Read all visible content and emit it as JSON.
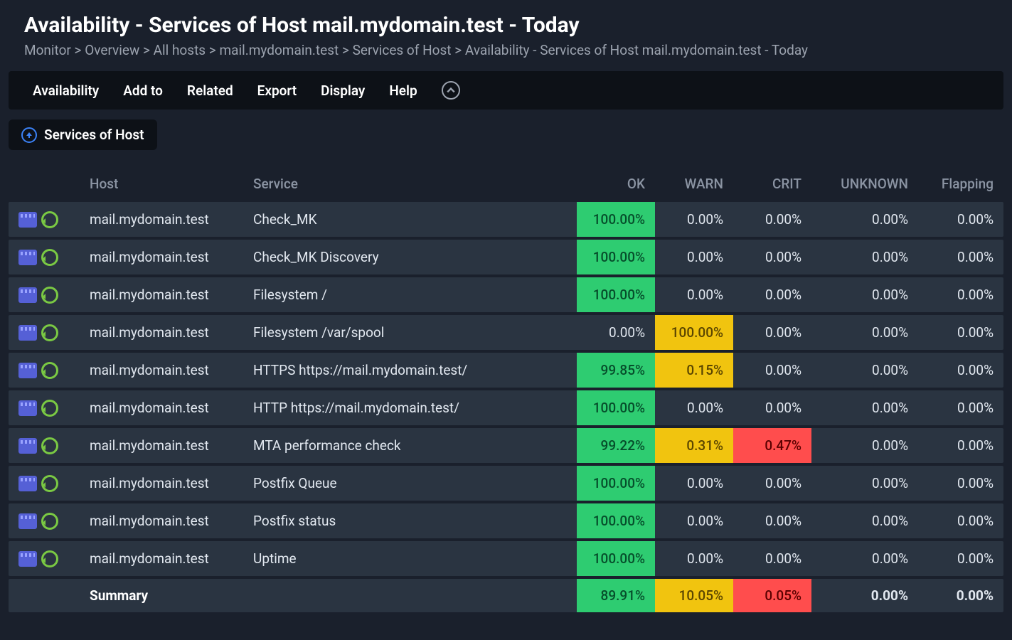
{
  "title": "Availability - Services of Host mail.mydomain.test - Today",
  "breadcrumb": [
    "Monitor",
    "Overview",
    "All hosts",
    "mail.mydomain.test",
    "Services of Host",
    "Availability - Services of Host mail.mydomain.test - Today"
  ],
  "menubar": [
    "Availability",
    "Add to",
    "Related",
    "Export",
    "Display",
    "Help"
  ],
  "chip_label": "Services of Host",
  "colors": {
    "background": "#1a202c",
    "row_bg": "#2a3441",
    "menubar_bg": "#0d1117",
    "text": "#e2e8f0",
    "muted": "#8b94a3",
    "ok_bg": "#2ecc71",
    "warn_bg": "#f1c40f",
    "crit_bg": "#ff4d4d",
    "accent_blue": "#3b82f6",
    "icon_timeline": "#5560d6",
    "icon_history": "#7ac943"
  },
  "table": {
    "columns": [
      "",
      "Host",
      "Service",
      "OK",
      "WARN",
      "CRIT",
      "UNKNOWN",
      "Flapping"
    ],
    "rows": [
      {
        "host": "mail.mydomain.test",
        "service": "Check_MK",
        "ok": "100.00%",
        "ok_hl": true,
        "warn": "0.00%",
        "warn_hl": false,
        "crit": "0.00%",
        "crit_hl": false,
        "unknown": "0.00%",
        "flapping": "0.00%"
      },
      {
        "host": "mail.mydomain.test",
        "service": "Check_MK Discovery",
        "ok": "100.00%",
        "ok_hl": true,
        "warn": "0.00%",
        "warn_hl": false,
        "crit": "0.00%",
        "crit_hl": false,
        "unknown": "0.00%",
        "flapping": "0.00%"
      },
      {
        "host": "mail.mydomain.test",
        "service": "Filesystem /",
        "ok": "100.00%",
        "ok_hl": true,
        "warn": "0.00%",
        "warn_hl": false,
        "crit": "0.00%",
        "crit_hl": false,
        "unknown": "0.00%",
        "flapping": "0.00%"
      },
      {
        "host": "mail.mydomain.test",
        "service": "Filesystem /var/spool",
        "ok": "0.00%",
        "ok_hl": false,
        "warn": "100.00%",
        "warn_hl": true,
        "crit": "0.00%",
        "crit_hl": false,
        "unknown": "0.00%",
        "flapping": "0.00%"
      },
      {
        "host": "mail.mydomain.test",
        "service": "HTTPS https://mail.mydomain.test/",
        "ok": "99.85%",
        "ok_hl": true,
        "warn": "0.15%",
        "warn_hl": true,
        "crit": "0.00%",
        "crit_hl": false,
        "unknown": "0.00%",
        "flapping": "0.00%"
      },
      {
        "host": "mail.mydomain.test",
        "service": "HTTP https://mail.mydomain.test/",
        "ok": "100.00%",
        "ok_hl": true,
        "warn": "0.00%",
        "warn_hl": false,
        "crit": "0.00%",
        "crit_hl": false,
        "unknown": "0.00%",
        "flapping": "0.00%"
      },
      {
        "host": "mail.mydomain.test",
        "service": "MTA performance check",
        "ok": "99.22%",
        "ok_hl": true,
        "warn": "0.31%",
        "warn_hl": true,
        "crit": "0.47%",
        "crit_hl": true,
        "unknown": "0.00%",
        "flapping": "0.00%"
      },
      {
        "host": "mail.mydomain.test",
        "service": "Postfix Queue",
        "ok": "100.00%",
        "ok_hl": true,
        "warn": "0.00%",
        "warn_hl": false,
        "crit": "0.00%",
        "crit_hl": false,
        "unknown": "0.00%",
        "flapping": "0.00%"
      },
      {
        "host": "mail.mydomain.test",
        "service": "Postfix status",
        "ok": "100.00%",
        "ok_hl": true,
        "warn": "0.00%",
        "warn_hl": false,
        "crit": "0.00%",
        "crit_hl": false,
        "unknown": "0.00%",
        "flapping": "0.00%"
      },
      {
        "host": "mail.mydomain.test",
        "service": "Uptime",
        "ok": "100.00%",
        "ok_hl": true,
        "warn": "0.00%",
        "warn_hl": false,
        "crit": "0.00%",
        "crit_hl": false,
        "unknown": "0.00%",
        "flapping": "0.00%"
      }
    ],
    "summary": {
      "label": "Summary",
      "ok": "89.91%",
      "ok_hl": true,
      "warn": "10.05%",
      "warn_hl": true,
      "crit": "0.05%",
      "crit_hl": true,
      "unknown": "0.00%",
      "flapping": "0.00%"
    }
  }
}
